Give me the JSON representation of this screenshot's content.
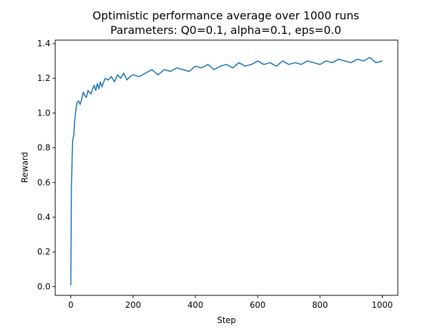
{
  "chart_data": {
    "type": "line",
    "title": "Optimistic performance average over 1000 runs",
    "subtitle": "Parameters: Q0=0.1, alpha=0.1, eps=0.0",
    "xlabel": "Step",
    "ylabel": "Reward",
    "xlim": [
      -50,
      1050
    ],
    "ylim": [
      -0.05,
      1.42
    ],
    "xticks": [
      0,
      200,
      400,
      600,
      800,
      1000
    ],
    "yticks": [
      0.0,
      0.2,
      0.4,
      0.6,
      0.8,
      1.0,
      1.2,
      1.4
    ],
    "grid": false,
    "series": [
      {
        "color": "#1f77b4",
        "x": [
          0,
          1,
          2,
          3,
          4,
          5,
          6,
          8,
          10,
          12,
          15,
          18,
          20,
          25,
          30,
          35,
          40,
          45,
          50,
          55,
          60,
          65,
          70,
          75,
          80,
          85,
          90,
          95,
          100,
          110,
          120,
          130,
          140,
          150,
          160,
          170,
          180,
          190,
          200,
          220,
          240,
          260,
          280,
          300,
          320,
          340,
          360,
          380,
          400,
          420,
          440,
          460,
          480,
          500,
          520,
          540,
          560,
          580,
          600,
          620,
          640,
          660,
          680,
          700,
          720,
          740,
          760,
          780,
          800,
          820,
          840,
          860,
          880,
          900,
          920,
          940,
          960,
          980,
          1000
        ],
        "y": [
          0.01,
          0.3,
          0.58,
          0.65,
          0.72,
          0.8,
          0.84,
          0.86,
          0.88,
          0.95,
          1.0,
          1.04,
          1.06,
          1.07,
          1.05,
          1.08,
          1.12,
          1.1,
          1.09,
          1.13,
          1.12,
          1.11,
          1.14,
          1.16,
          1.13,
          1.17,
          1.14,
          1.18,
          1.15,
          1.2,
          1.19,
          1.21,
          1.18,
          1.22,
          1.2,
          1.23,
          1.19,
          1.21,
          1.22,
          1.21,
          1.23,
          1.25,
          1.22,
          1.25,
          1.24,
          1.26,
          1.25,
          1.24,
          1.27,
          1.26,
          1.28,
          1.25,
          1.27,
          1.28,
          1.26,
          1.29,
          1.27,
          1.28,
          1.3,
          1.28,
          1.29,
          1.27,
          1.3,
          1.28,
          1.29,
          1.28,
          1.3,
          1.29,
          1.28,
          1.3,
          1.29,
          1.31,
          1.3,
          1.29,
          1.31,
          1.3,
          1.32,
          1.29,
          1.3
        ]
      }
    ]
  }
}
